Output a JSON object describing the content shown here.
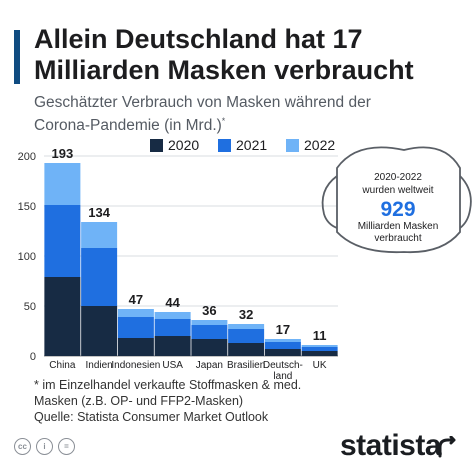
{
  "header": {
    "title": "Allein Deutschland hat 17 Milliarden Masken verbraucht",
    "subtitle": "Geschätzter Verbrauch von Masken während der Corona-Pandemie (in Mrd.)",
    "subtitle_mark": "*"
  },
  "callout": {
    "line1": "2020-2022",
    "line2": "wurden weltweit",
    "value": "929",
    "line3": "Milliarden Masken",
    "line4": "verbraucht"
  },
  "footnote": {
    "text": "* im Einzelhandel verkaufte Stoffmasken & med. Masken (z.B. OP- und FFP2-Masken)"
  },
  "source": "Quelle: Statista Consumer Market Outlook",
  "branding": {
    "logo": "statista",
    "license_icons": [
      "cc-icon",
      "person-icon",
      "equals-icon"
    ]
  },
  "colors": {
    "2020": "#172b44",
    "2021": "#1f6fe0",
    "2022": "#6fb3f7",
    "accent": "#0f4c81",
    "mask_outline": "#5a5f66"
  },
  "chart_data": {
    "type": "bar",
    "stacked": true,
    "categories": [
      "China",
      "Indien",
      "Indonesien",
      "USA",
      "Japan",
      "Brasilien",
      "Deutsch-land",
      "UK"
    ],
    "category_display": [
      [
        "China"
      ],
      [
        "Indien"
      ],
      [
        "Indonesien"
      ],
      [
        "USA"
      ],
      [
        "Japan"
      ],
      [
        "Brasilien"
      ],
      [
        "Deutsch-",
        "land"
      ],
      [
        "UK"
      ]
    ],
    "totals": [
      193,
      134,
      47,
      44,
      36,
      32,
      17,
      11
    ],
    "series": [
      {
        "name": "2020",
        "values": [
          79,
          50,
          18,
          20,
          17,
          13,
          7,
          5
        ]
      },
      {
        "name": "2021",
        "values": [
          72,
          58,
          21,
          17,
          14,
          14,
          7,
          4
        ]
      },
      {
        "name": "2022",
        "values": [
          42,
          26,
          8,
          7,
          5,
          5,
          3,
          2
        ]
      }
    ],
    "ylim": [
      0,
      200
    ],
    "yticks": [
      0,
      50,
      100,
      150,
      200
    ],
    "grid": true,
    "legend": "top"
  }
}
